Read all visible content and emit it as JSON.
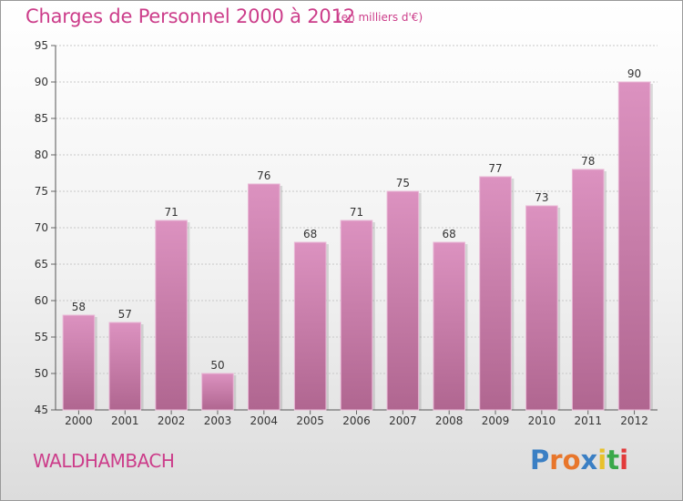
{
  "header": {
    "title": "Charges de Personnel 2000 à 2012",
    "subtitle": "(en milliers d'€)"
  },
  "footer": {
    "commune": "WALDHAMBACH",
    "logo_text": "Proxiti",
    "logo_colors": [
      "#3a7fc4",
      "#e8762b",
      "#e8762b",
      "#3a7fc4",
      "#e8c12b",
      "#3aa84a",
      "#e23b3b"
    ]
  },
  "chart_data": {
    "type": "bar",
    "categories": [
      "2000",
      "2001",
      "2002",
      "2003",
      "2004",
      "2005",
      "2006",
      "2007",
      "2008",
      "2009",
      "2010",
      "2011",
      "2012"
    ],
    "values": [
      58,
      57,
      71,
      50,
      76,
      68,
      71,
      75,
      68,
      77,
      73,
      78,
      90
    ],
    "data_labels": [
      "58",
      "57",
      "71",
      "50",
      "76",
      "68",
      "71",
      "75",
      "68",
      "77",
      "73",
      "78",
      "90"
    ],
    "ylim": [
      45,
      95
    ],
    "yticks": [
      45,
      50,
      55,
      60,
      65,
      70,
      75,
      80,
      85,
      90,
      95
    ],
    "grid": true,
    "bar_color": "#dc92c0",
    "bar_color_dark": "#b06690"
  }
}
